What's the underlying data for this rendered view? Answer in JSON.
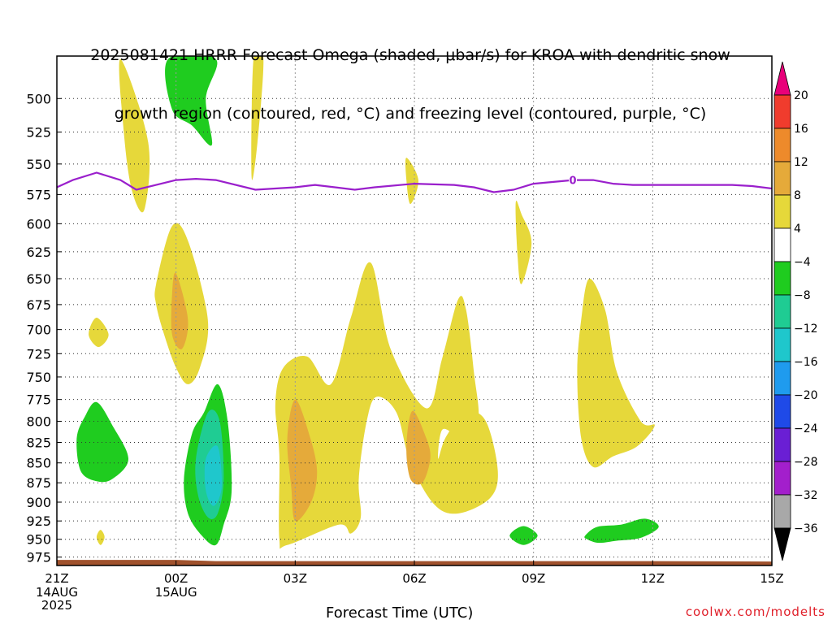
{
  "title": {
    "line1": "2025081421 HRRR Forecast Omega (shaded, μbar/s) for KROA with dendritic snow",
    "line2": "growth region (contoured, red, °C) and freezing level (contoured, purple, °C)"
  },
  "credit": "coolwx.com/modelts",
  "chart_data": {
    "type": "contour",
    "title": "2025081421 HRRR Forecast Omega (shaded, μbar/s) for KROA with dendritic snow growth region (contoured, red, °C) and freezing level (contoured, purple, °C)",
    "xlabel": "Forecast Time (UTC)",
    "ylabel": "",
    "x_ticks": [
      {
        "t": 0,
        "label": "21Z",
        "sub": [
          "14AUG",
          "2025"
        ]
      },
      {
        "t": 3,
        "label": "00Z",
        "sub": [
          "15AUG"
        ]
      },
      {
        "t": 6,
        "label": "03Z",
        "sub": []
      },
      {
        "t": 9,
        "label": "06Z",
        "sub": []
      },
      {
        "t": 12,
        "label": "09Z",
        "sub": []
      },
      {
        "t": 15,
        "label": "12Z",
        "sub": []
      },
      {
        "t": 18,
        "label": "15Z",
        "sub": []
      }
    ],
    "xlim": [
      0,
      18
    ],
    "y_ticks": [
      500,
      525,
      550,
      575,
      600,
      625,
      650,
      675,
      700,
      725,
      750,
      775,
      800,
      825,
      850,
      875,
      900,
      925,
      950,
      975
    ],
    "ylim_hPa": [
      470,
      987
    ],
    "y_scale": "log-pressure",
    "grid": true,
    "colorbar": {
      "labels": [
        "20",
        "16",
        "12",
        "8",
        "4",
        "−4",
        "−8",
        "−12",
        "−16",
        "−20",
        "−24",
        "−28",
        "−32",
        "−36"
      ],
      "bins": [
        {
          "range": ">20",
          "color": "#e8007a"
        },
        {
          "range": "16 to 20",
          "color": "#f03c2d"
        },
        {
          "range": "12 to 16",
          "color": "#ed8a2b"
        },
        {
          "range": "8 to 12",
          "color": "#e5aa3a"
        },
        {
          "range": "4 to 8",
          "color": "#e6d83a"
        },
        {
          "range": "-4 to 4",
          "color": "#ffffff"
        },
        {
          "range": "-8 to -4",
          "color": "#1fcc1f"
        },
        {
          "range": "-12 to -8",
          "color": "#1fcc93"
        },
        {
          "range": "-16 to -12",
          "color": "#1fc7cc"
        },
        {
          "range": "-20 to -16",
          "color": "#1f9bee"
        },
        {
          "range": "-24 to -20",
          "color": "#1f4ae8"
        },
        {
          "range": "-28 to -24",
          "color": "#6a1fd4"
        },
        {
          "range": "-32 to -28",
          "color": "#a31fcc"
        },
        {
          "range": "-36 to -32",
          "color": "#a8a8a8"
        },
        {
          "range": "<-36",
          "color": "#000000"
        }
      ]
    },
    "freezing_level": {
      "color": "#9a1fcc",
      "label": "0",
      "label_t": 12.99,
      "points": [
        [
          0.0,
          569
        ],
        [
          0.4,
          563
        ],
        [
          1.0,
          557
        ],
        [
          1.6,
          563
        ],
        [
          2.0,
          571
        ],
        [
          2.5,
          567
        ],
        [
          3.0,
          563
        ],
        [
          3.5,
          562
        ],
        [
          4.0,
          563
        ],
        [
          5.0,
          571
        ],
        [
          6.0,
          569
        ],
        [
          6.5,
          567
        ],
        [
          7.0,
          569
        ],
        [
          7.5,
          571
        ],
        [
          8.0,
          569
        ],
        [
          9.0,
          566
        ],
        [
          10.0,
          567
        ],
        [
          10.5,
          569
        ],
        [
          11.0,
          573
        ],
        [
          11.5,
          571
        ],
        [
          12.0,
          566
        ],
        [
          13.0,
          563
        ],
        [
          13.5,
          563
        ],
        [
          14.0,
          566
        ],
        [
          14.5,
          567
        ],
        [
          15.0,
          567
        ],
        [
          16.0,
          567
        ],
        [
          17.0,
          567
        ],
        [
          17.5,
          568
        ],
        [
          18.0,
          570
        ]
      ]
    },
    "terrain": {
      "color": "#a0522d",
      "surface_hPa": 979
    },
    "regions": [
      {
        "value": "4 to 8",
        "color": "#e6d83a",
        "points": [
          [
            1.6,
            472
          ],
          [
            2.3,
            533
          ],
          [
            2.2,
            588
          ],
          [
            1.9,
            573
          ],
          [
            1.7,
            530
          ]
        ]
      },
      {
        "value": "4 to 8",
        "color": "#e6d83a",
        "points": [
          [
            4.95,
            472
          ],
          [
            5.2,
            472
          ],
          [
            5.05,
            533
          ],
          [
            4.9,
            560
          ]
        ]
      },
      {
        "value": "4 to 8",
        "color": "#e6d83a",
        "points": [
          [
            8.8,
            545
          ],
          [
            9.1,
            563
          ],
          [
            8.9,
            583
          ],
          [
            8.8,
            563
          ]
        ]
      },
      {
        "value": "4 to 8",
        "color": "#e6d83a",
        "points": [
          [
            11.55,
            582
          ],
          [
            11.7,
            592
          ],
          [
            11.95,
            617
          ],
          [
            11.7,
            655
          ],
          [
            11.6,
            630
          ]
        ]
      },
      {
        "value": "4 to 8",
        "color": "#e6d83a",
        "points": [
          [
            1.0,
            688
          ],
          [
            1.3,
            705
          ],
          [
            1.05,
            718
          ],
          [
            0.8,
            705
          ]
        ]
      },
      {
        "value": "4 to 8",
        "color": "#e6d83a",
        "points": [
          [
            1.1,
            937
          ],
          [
            1.2,
            947
          ],
          [
            1.1,
            958
          ],
          [
            1.0,
            947
          ]
        ]
      },
      {
        "value": "4 to 8",
        "color": "#e6d83a",
        "points": [
          [
            2.5,
            655
          ],
          [
            2.9,
            602
          ],
          [
            3.3,
            615
          ],
          [
            3.8,
            690
          ],
          [
            3.6,
            740
          ],
          [
            3.3,
            758
          ],
          [
            3.0,
            740
          ],
          [
            2.7,
            705
          ],
          [
            2.5,
            675
          ]
        ]
      },
      {
        "value": "4 to 8",
        "color": "#e6d83a",
        "points": [
          [
            5.7,
            740
          ],
          [
            6.3,
            728
          ],
          [
            6.9,
            758
          ],
          [
            7.4,
            688
          ],
          [
            7.9,
            635
          ],
          [
            8.4,
            720
          ],
          [
            9.3,
            785
          ],
          [
            9.7,
            730
          ],
          [
            10.1,
            670
          ],
          [
            10.3,
            680
          ],
          [
            10.5,
            745
          ],
          [
            10.6,
            800
          ],
          [
            10.1,
            815
          ],
          [
            9.7,
            810
          ],
          [
            9.6,
            845
          ],
          [
            9.8,
            818
          ],
          [
            10.3,
            790
          ],
          [
            10.8,
            800
          ],
          [
            11.1,
            860
          ],
          [
            10.9,
            895
          ],
          [
            10.1,
            915
          ],
          [
            9.5,
            903
          ],
          [
            8.9,
            850
          ],
          [
            8.55,
            790
          ],
          [
            8.05,
            772
          ],
          [
            7.8,
            800
          ],
          [
            7.6,
            870
          ],
          [
            7.65,
            920
          ],
          [
            7.4,
            942
          ],
          [
            7.1,
            930
          ],
          [
            5.8,
            958
          ],
          [
            5.6,
            950
          ],
          [
            5.6,
            840
          ],
          [
            5.5,
            780
          ]
        ]
      },
      {
        "value": "4 to 8",
        "color": "#e6d83a",
        "points": [
          [
            13.4,
            650
          ],
          [
            13.8,
            680
          ],
          [
            14.1,
            745
          ],
          [
            14.7,
            800
          ],
          [
            15.05,
            805
          ],
          [
            14.6,
            830
          ],
          [
            14.0,
            842
          ],
          [
            13.5,
            855
          ],
          [
            13.2,
            820
          ],
          [
            13.1,
            745
          ],
          [
            13.2,
            690
          ]
        ]
      },
      {
        "value": "8 to 12",
        "color": "#e5aa3a",
        "points": [
          [
            3.0,
            645
          ],
          [
            3.3,
            690
          ],
          [
            3.15,
            720
          ],
          [
            2.9,
            705
          ],
          [
            2.9,
            665
          ]
        ]
      },
      {
        "value": "8 to 12",
        "color": "#e5aa3a",
        "points": [
          [
            6.0,
            775
          ],
          [
            6.35,
            815
          ],
          [
            6.55,
            860
          ],
          [
            6.4,
            900
          ],
          [
            6.0,
            925
          ],
          [
            5.9,
            880
          ],
          [
            5.8,
            820
          ]
        ]
      },
      {
        "value": "8 to 12",
        "color": "#e5aa3a",
        "points": [
          [
            8.95,
            788
          ],
          [
            9.3,
            820
          ],
          [
            9.4,
            845
          ],
          [
            9.2,
            875
          ],
          [
            8.9,
            870
          ],
          [
            8.8,
            830
          ]
        ]
      },
      {
        "value": "-8 to -4",
        "color": "#1fcc1f",
        "points": [
          [
            2.8,
            472
          ],
          [
            4.0,
            472
          ],
          [
            3.75,
            500
          ],
          [
            3.9,
            535
          ],
          [
            3.4,
            520
          ],
          [
            2.9,
            508
          ]
        ]
      },
      {
        "value": "-8 to -4",
        "color": "#1fcc1f",
        "points": [
          [
            0.5,
            820
          ],
          [
            0.7,
            795
          ],
          [
            1.0,
            778
          ],
          [
            1.4,
            805
          ],
          [
            1.8,
            845
          ],
          [
            1.4,
            870
          ],
          [
            1.0,
            873
          ],
          [
            0.6,
            860
          ]
        ]
      },
      {
        "value": "-8 to -4",
        "color": "#1fcc1f",
        "points": [
          [
            3.2,
            870
          ],
          [
            3.4,
            815
          ],
          [
            3.7,
            790
          ],
          [
            4.05,
            758
          ],
          [
            4.3,
            800
          ],
          [
            4.4,
            885
          ],
          [
            4.2,
            930
          ],
          [
            4.0,
            958
          ],
          [
            3.65,
            945
          ],
          [
            3.3,
            915
          ]
        ]
      },
      {
        "value": "-8 to -4",
        "color": "#1fcc1f",
        "points": [
          [
            11.4,
            945
          ],
          [
            11.75,
            932
          ],
          [
            12.1,
            945
          ],
          [
            11.75,
            958
          ]
        ]
      },
      {
        "value": "-8 to -4",
        "color": "#1fcc1f",
        "points": [
          [
            13.3,
            945
          ],
          [
            13.6,
            933
          ],
          [
            14.2,
            930
          ],
          [
            14.8,
            922
          ],
          [
            15.15,
            933
          ],
          [
            14.7,
            948
          ],
          [
            14.1,
            952
          ],
          [
            13.65,
            955
          ],
          [
            13.35,
            950
          ]
        ]
      },
      {
        "value": "-12 to -8",
        "color": "#1fcc93",
        "points": [
          [
            3.5,
            845
          ],
          [
            3.8,
            790
          ],
          [
            4.1,
            800
          ],
          [
            4.2,
            870
          ],
          [
            4.05,
            915
          ],
          [
            3.8,
            920
          ],
          [
            3.55,
            890
          ]
        ]
      },
      {
        "value": "-16 to -12",
        "color": "#1fc7cc",
        "points": [
          [
            3.75,
            845
          ],
          [
            4.05,
            830
          ],
          [
            4.15,
            880
          ],
          [
            3.95,
            905
          ],
          [
            3.75,
            885
          ]
        ]
      }
    ]
  }
}
